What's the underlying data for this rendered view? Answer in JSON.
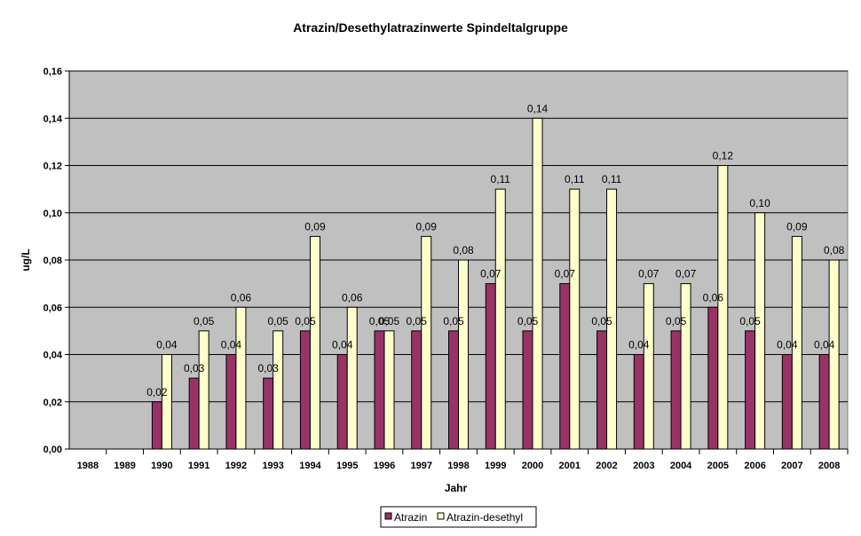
{
  "chart_data": {
    "type": "bar",
    "title": "Atrazin/Desethylatrazinwerte Spindeltalgruppe",
    "xlabel": "Jahr",
    "ylabel": "ug/L",
    "ylim": [
      0,
      0.16
    ],
    "yticks": [
      "0,00",
      "0,02",
      "0,04",
      "0,06",
      "0,08",
      "0,10",
      "0,12",
      "0,14",
      "0,16"
    ],
    "ytick_values": [
      0,
      0.02,
      0.04,
      0.06,
      0.08,
      0.1,
      0.12,
      0.14,
      0.16
    ],
    "grid": true,
    "legend_position": "bottom",
    "categories": [
      "1988",
      "1989",
      "1990",
      "1991",
      "1992",
      "1993",
      "1994",
      "1995",
      "1996",
      "1997",
      "1998",
      "1999",
      "2000",
      "2001",
      "2002",
      "2003",
      "2004",
      "2005",
      "2006",
      "2007",
      "2008"
    ],
    "series": [
      {
        "name": "Atrazin",
        "color": "#993366",
        "values": [
          null,
          null,
          0.02,
          0.03,
          0.04,
          0.03,
          0.05,
          0.04,
          0.05,
          0.05,
          0.05,
          0.07,
          0.05,
          0.07,
          0.05,
          0.04,
          0.05,
          0.06,
          0.05,
          0.04,
          0.04
        ],
        "labels": [
          "",
          "",
          "0,02",
          "0,03",
          "0,04",
          "0,03",
          "0,05",
          "0,04",
          "0,05",
          "0,05",
          "0,05",
          "0,07",
          "0,05",
          "0,07",
          "0,05",
          "0,04",
          "0,05",
          "0,06",
          "0,05",
          "0,04",
          "0,04"
        ]
      },
      {
        "name": "Atrazin-desethyl",
        "color": "#FFFFCC",
        "values": [
          null,
          null,
          0.04,
          0.05,
          0.06,
          0.05,
          0.09,
          0.06,
          0.05,
          0.09,
          0.08,
          0.11,
          0.14,
          0.11,
          0.11,
          0.07,
          0.07,
          0.12,
          0.1,
          0.09,
          0.08
        ],
        "labels": [
          "",
          "",
          "0,04",
          "0,05",
          "0,06",
          "0,05",
          "0,09",
          "0,06",
          "0,05",
          "0,09",
          "0,08",
          "0,11",
          "0,14",
          "0,11",
          "0,11",
          "0,07",
          "0,07",
          "0,12",
          "0,10",
          "0,09",
          "0,08"
        ]
      }
    ],
    "plot_background": "#C0C0C0"
  }
}
